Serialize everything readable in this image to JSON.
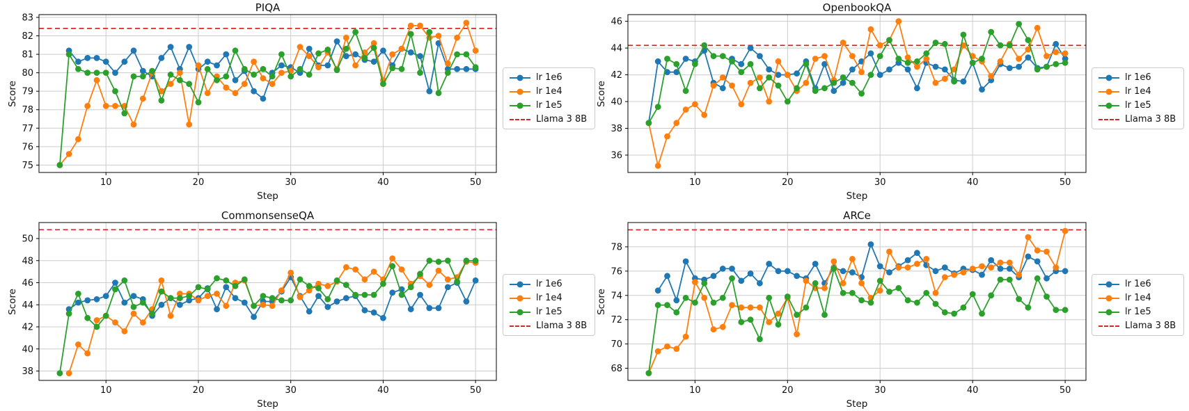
{
  "accent_colors": {
    "blue": "#1f77b4",
    "orange": "#ff7f0e",
    "green": "#2ca02c",
    "red": "#d62728",
    "grid": "#cccccc"
  },
  "chart_data": [
    {
      "type": "line",
      "title": "PIQA",
      "xlabel": "Step",
      "ylabel": "Score",
      "grid": true,
      "legend_position": "right",
      "legend": [
        "lr 1e6",
        "lr 1e4",
        "lr 1e5",
        "Llama 3 8B"
      ],
      "x_ticks": [
        10,
        20,
        30,
        40,
        50
      ],
      "y_ticks": [
        75,
        76,
        77,
        78,
        79,
        80,
        81,
        82,
        83
      ],
      "xlim": [
        2.75,
        52.25
      ],
      "ylim": [
        74.6,
        83.15
      ],
      "baseline": {
        "label": "Llama 3 8B",
        "value": 82.4,
        "color": "#d62728"
      },
      "series": [
        {
          "name": "lr 1e6",
          "color": "#1f77b4",
          "start_step": 6,
          "values": [
            81.2,
            80.6,
            80.8,
            80.8,
            80.6,
            80.0,
            80.6,
            81.2,
            80.1,
            79.8,
            80.8,
            81.4,
            80.2,
            81.4,
            80.2,
            80.6,
            80.4,
            81.0,
            79.6,
            80.1,
            79.0,
            78.6,
            80.0,
            80.4,
            80.3,
            80.0,
            81.3,
            80.4,
            80.4,
            81.7,
            80.9,
            81.0,
            80.7,
            80.6,
            81.2,
            80.4,
            81.3,
            81.1,
            80.9,
            79.0,
            81.6,
            80.2,
            80.2,
            80.2,
            80.2
          ]
        },
        {
          "name": "lr 1e4",
          "color": "#ff7f0e",
          "start_step": 5,
          "values": [
            75.0,
            75.6,
            76.4,
            78.2,
            79.6,
            78.2,
            78.2,
            78.2,
            77.2,
            78.6,
            80.0,
            79.0,
            79.4,
            80.0,
            77.2,
            80.4,
            78.9,
            79.8,
            79.2,
            78.9,
            79.4,
            80.6,
            79.7,
            79.4,
            80.0,
            80.1,
            81.4,
            80.9,
            80.3,
            81.1,
            80.2,
            81.9,
            80.4,
            81.1,
            81.6,
            79.6,
            81.0,
            81.3,
            82.55,
            82.55,
            81.9,
            82.0,
            80.5,
            81.9,
            82.7,
            81.2
          ]
        },
        {
          "name": "lr 1e5",
          "color": "#2ca02c",
          "start_step": 5,
          "values": [
            75.0,
            81.0,
            80.2,
            80.0,
            80.0,
            80.0,
            79.0,
            77.8,
            79.8,
            79.8,
            80.1,
            78.5,
            79.9,
            79.6,
            79.4,
            78.4,
            80.2,
            79.6,
            79.8,
            81.2,
            80.2,
            79.9,
            80.2,
            79.8,
            81.0,
            79.8,
            80.2,
            79.9,
            81.05,
            81.25,
            80.15,
            81.3,
            82.2,
            80.8,
            81.35,
            79.4,
            80.25,
            80.2,
            82.1,
            80.0,
            82.2,
            78.9,
            80.0,
            81.0,
            81.0,
            80.3
          ]
        }
      ]
    },
    {
      "type": "line",
      "title": "OpenbookQA",
      "xlabel": "Step",
      "ylabel": "Score",
      "grid": true,
      "legend_position": "right",
      "legend": [
        "lr 1e6",
        "lr 1e4",
        "lr 1e5",
        "Llama 3 8B"
      ],
      "x_ticks": [
        10,
        20,
        30,
        40,
        50
      ],
      "y_ticks": [
        36,
        38,
        40,
        42,
        44,
        46
      ],
      "xlim": [
        2.75,
        52.25
      ],
      "ylim": [
        34.7,
        46.5
      ],
      "baseline": {
        "label": "Llama 3 8B",
        "value": 44.2,
        "color": "#d62728"
      },
      "series": [
        {
          "name": "lr 1e6",
          "color": "#1f77b4",
          "start_step": 5,
          "values": [
            38.4,
            43.0,
            42.2,
            42.2,
            43.2,
            43.0,
            43.8,
            41.4,
            41.0,
            43.2,
            42.8,
            44.0,
            43.4,
            42.4,
            42.0,
            42.0,
            42.1,
            43.0,
            41.0,
            42.8,
            40.8,
            41.4,
            42.4,
            43.0,
            43.6,
            42.0,
            42.4,
            42.9,
            42.4,
            41.0,
            42.9,
            42.6,
            42.4,
            41.6,
            41.5,
            42.9,
            40.9,
            41.6,
            42.8,
            42.5,
            42.6,
            43.3,
            42.5,
            42.6,
            44.3,
            43.2
          ]
        },
        {
          "name": "lr 1e4",
          "color": "#ff7f0e",
          "start_step": 5,
          "values": [
            38.4,
            35.2,
            37.4,
            38.4,
            39.4,
            39.8,
            39.0,
            41.2,
            41.8,
            41.2,
            39.8,
            41.4,
            41.8,
            40.0,
            43.0,
            42.0,
            40.8,
            41.4,
            43.2,
            43.4,
            41.6,
            44.4,
            43.4,
            42.2,
            45.4,
            44.2,
            44.6,
            46.0,
            43.3,
            42.6,
            43.2,
            41.4,
            41.7,
            42.4,
            44.2,
            43.4,
            43.0,
            41.9,
            43.0,
            44.3,
            43.2,
            43.9,
            45.5,
            43.4,
            43.7,
            43.6
          ]
        },
        {
          "name": "lr 1e5",
          "color": "#2ca02c",
          "start_step": 5,
          "values": [
            38.4,
            39.6,
            43.2,
            42.8,
            40.8,
            42.8,
            44.2,
            43.4,
            43.4,
            43.0,
            42.2,
            42.8,
            41.0,
            41.8,
            41.2,
            40.0,
            41.0,
            42.8,
            40.8,
            41.0,
            41.4,
            41.8,
            41.4,
            40.6,
            42.0,
            43.4,
            44.6,
            43.2,
            42.9,
            43.0,
            43.6,
            44.4,
            44.3,
            41.5,
            45.0,
            42.9,
            43.2,
            45.2,
            44.2,
            44.2,
            45.8,
            44.6,
            42.4,
            42.6,
            42.8,
            42.9
          ]
        }
      ]
    },
    {
      "type": "line",
      "title": "CommonsenseQA",
      "xlabel": "Step",
      "ylabel": "Score",
      "grid": true,
      "legend_position": "right",
      "legend": [
        "lr 1e6",
        "lr 1e4",
        "lr 1e5",
        "Llama 3 8B"
      ],
      "x_ticks": [
        10,
        20,
        30,
        40,
        50
      ],
      "y_ticks": [
        38,
        40,
        42,
        44,
        46,
        48,
        50
      ],
      "xlim": [
        2.75,
        52.25
      ],
      "ylim": [
        37.15,
        51.45
      ],
      "baseline": {
        "label": "Llama 3 8B",
        "value": 50.8,
        "color": "#d62728"
      },
      "series": [
        {
          "name": "lr 1e6",
          "color": "#1f77b4",
          "start_step": 6,
          "values": [
            43.6,
            44.2,
            44.4,
            44.5,
            44.8,
            46.0,
            44.2,
            44.8,
            44.5,
            43.0,
            44.0,
            44.6,
            44.0,
            44.4,
            44.6,
            45.5,
            43.6,
            45.6,
            44.6,
            44.2,
            42.9,
            44.3,
            44.3,
            45.2,
            46.5,
            44.8,
            43.4,
            44.8,
            43.8,
            44.3,
            44.6,
            44.8,
            43.5,
            43.3,
            42.8,
            45.1,
            45.4,
            43.6,
            44.9,
            43.7,
            43.7,
            45.6,
            46.0,
            44.3,
            46.2
          ]
        },
        {
          "name": "lr 1e4",
          "color": "#ff7f0e",
          "start_step": 6,
          "values": [
            37.8,
            40.4,
            39.6,
            42.6,
            43.0,
            42.4,
            41.6,
            43.2,
            42.4,
            43.6,
            46.2,
            43.0,
            45.0,
            45.0,
            44.4,
            44.8,
            45.0,
            43.9,
            46.0,
            46.2,
            43.9,
            44.0,
            43.9,
            45.3,
            46.9,
            44.7,
            45.3,
            45.9,
            45.7,
            46.1,
            47.4,
            47.2,
            46.3,
            47.0,
            46.3,
            48.2,
            47.2,
            45.9,
            46.6,
            45.8,
            47.1,
            46.3,
            46.5,
            47.9,
            47.8
          ]
        },
        {
          "name": "lr 1e5",
          "color": "#2ca02c",
          "start_step": 5,
          "values": [
            37.8,
            43.2,
            45.0,
            42.8,
            42.0,
            43.0,
            45.4,
            46.2,
            43.8,
            44.2,
            43.2,
            45.2,
            44.6,
            44.6,
            44.8,
            45.6,
            45.4,
            46.4,
            46.2,
            45.7,
            46.3,
            43.9,
            44.8,
            44.6,
            44.4,
            44.4,
            46.3,
            45.7,
            45.5,
            44.5,
            46.2,
            45.8,
            44.9,
            44.9,
            44.9,
            45.9,
            47.5,
            44.9,
            45.6,
            46.8,
            48.0,
            47.9,
            48.0,
            46.1,
            48.0,
            48.0
          ]
        }
      ]
    },
    {
      "type": "line",
      "title": "ARCe",
      "xlabel": "Step",
      "ylabel": "Score",
      "grid": true,
      "legend_position": "right",
      "legend": [
        "lr 1e6",
        "lr 1e4",
        "lr 1e5",
        "Llama 3 8B"
      ],
      "x_ticks": [
        10,
        20,
        30,
        40,
        50
      ],
      "y_ticks": [
        68,
        70,
        72,
        74,
        76,
        78
      ],
      "xlim": [
        2.75,
        52.25
      ],
      "ylim": [
        67.0,
        80.0
      ],
      "baseline": {
        "label": "Llama 3 8B",
        "value": 79.4,
        "color": "#d62728"
      },
      "series": [
        {
          "name": "lr 1e6",
          "color": "#1f77b4",
          "start_step": 6,
          "values": [
            74.4,
            75.6,
            73.6,
            76.8,
            75.4,
            75.3,
            75.6,
            76.2,
            76.2,
            75.2,
            75.8,
            75.0,
            76.6,
            76.0,
            76.0,
            75.6,
            75.4,
            76.6,
            75.0,
            76.3,
            76.0,
            75.9,
            75.5,
            78.2,
            76.4,
            75.9,
            76.4,
            76.9,
            77.5,
            76.5,
            76.0,
            76.3,
            75.8,
            76.2,
            76.1,
            75.7,
            76.9,
            76.2,
            76.2,
            75.5,
            77.2,
            76.8,
            75.4,
            76.0,
            76.0
          ]
        },
        {
          "name": "lr 1e4",
          "color": "#ff7f0e",
          "start_step": 5,
          "values": [
            67.6,
            69.4,
            69.8,
            69.6,
            70.6,
            75.1,
            73.8,
            71.2,
            71.4,
            73.2,
            73.0,
            73.0,
            73.0,
            71.8,
            72.5,
            73.8,
            70.8,
            75.2,
            74.6,
            74.6,
            76.8,
            75.0,
            77.0,
            75.0,
            73.8,
            74.4,
            77.6,
            76.3,
            76.3,
            76.6,
            77.0,
            74.2,
            75.5,
            75.7,
            75.9,
            76.2,
            76.4,
            76.3,
            76.7,
            76.7,
            75.7,
            78.8,
            77.7,
            77.6,
            76.3,
            79.3
          ]
        },
        {
          "name": "lr 1e5",
          "color": "#2ca02c",
          "start_step": 5,
          "values": [
            67.6,
            73.2,
            73.2,
            72.6,
            73.8,
            73.4,
            75.0,
            73.4,
            73.8,
            75.4,
            71.8,
            72.0,
            70.4,
            73.8,
            71.6,
            73.9,
            72.4,
            73.0,
            75.0,
            72.4,
            76.2,
            74.2,
            74.2,
            73.6,
            73.4,
            75.2,
            74.3,
            74.6,
            73.6,
            73.4,
            74.2,
            73.3,
            72.6,
            72.5,
            73.0,
            74.1,
            72.5,
            74.0,
            75.3,
            75.3,
            73.7,
            73.0,
            75.4,
            73.9,
            72.8,
            72.8
          ]
        }
      ]
    }
  ]
}
